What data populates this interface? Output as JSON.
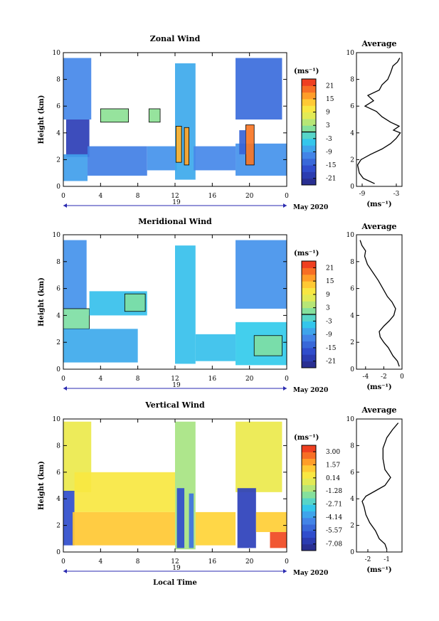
{
  "chart_data": [
    {
      "type": "heatmap",
      "title": "Zonal Wind",
      "ylabel": "Height (km)",
      "xlabel": "",
      "x_ticks": [
        "0",
        "4",
        "8",
        "12",
        "16",
        "20",
        "0"
      ],
      "y_ticks": [
        "0",
        "2",
        "4",
        "6",
        "8",
        "10"
      ],
      "xlim": [
        0,
        24
      ],
      "ylim": [
        0,
        10
      ],
      "date_marker": "19",
      "date_label": "May 2020",
      "colorbar": {
        "unit": "(ms⁻¹)",
        "ticks": [
          "-21",
          "-15",
          "-9",
          "-3",
          "3",
          "9",
          "15",
          "21"
        ],
        "range": [
          -24,
          24
        ],
        "zero_contour": 0
      },
      "regions": [
        {
          "x": [
            0,
            3
          ],
          "y": [
            5,
            9.6
          ],
          "value": -10
        },
        {
          "x": [
            0.3,
            2.8
          ],
          "y": [
            2.2,
            5
          ],
          "value": -19
        },
        {
          "x": [
            0,
            2.6
          ],
          "y": [
            0.4,
            2.4
          ],
          "value": -8
        },
        {
          "x": [
            2.6,
            9
          ],
          "y": [
            0.8,
            3
          ],
          "value": -11
        },
        {
          "x": [
            4,
            7
          ],
          "y": [
            4.8,
            5.8
          ],
          "value": 2
        },
        {
          "x": [
            9.2,
            10.4
          ],
          "y": [
            4.8,
            5.8
          ],
          "value": 2
        },
        {
          "x": [
            9,
            12.2
          ],
          "y": [
            1.2,
            3
          ],
          "value": -9
        },
        {
          "x": [
            12,
            14.2
          ],
          "y": [
            0.5,
            9.2
          ],
          "value": -7
        },
        {
          "x": [
            12.1,
            12.7
          ],
          "y": [
            1.8,
            4.5
          ],
          "value": 15
        },
        {
          "x": [
            13,
            13.5
          ],
          "y": [
            1.6,
            4.4
          ],
          "value": 16
        },
        {
          "x": [
            14,
            18.5
          ],
          "y": [
            1.2,
            3
          ],
          "value": -10
        },
        {
          "x": [
            18.5,
            23.5
          ],
          "y": [
            5,
            9.6
          ],
          "value": -13
        },
        {
          "x": [
            18.5,
            24
          ],
          "y": [
            0.8,
            3.2
          ],
          "value": -9
        },
        {
          "x": [
            19.6,
            20.5
          ],
          "y": [
            1.6,
            4.6
          ],
          "value": 19
        },
        {
          "x": [
            18.9,
            19.6
          ],
          "y": [
            2.4,
            4.2
          ],
          "value": -14
        }
      ],
      "average": {
        "title": "Average",
        "xlabel": "(ms⁻¹)",
        "x_ticks": [
          "-9",
          "-3"
        ],
        "xlim": [
          -10,
          -2
        ],
        "profile": [
          [
            -6.8,
            0.2
          ],
          [
            -8.8,
            0.6
          ],
          [
            -9.5,
            1.0
          ],
          [
            -9.8,
            1.6
          ],
          [
            -9.2,
            2.0
          ],
          [
            -7.5,
            2.4
          ],
          [
            -5.5,
            2.8
          ],
          [
            -4.0,
            3.2
          ],
          [
            -3.0,
            3.6
          ],
          [
            -2.3,
            4.0
          ],
          [
            -3.5,
            4.2
          ],
          [
            -2.5,
            4.5
          ],
          [
            -4.0,
            4.8
          ],
          [
            -5.5,
            5.2
          ],
          [
            -6.5,
            5.6
          ],
          [
            -8.5,
            6.0
          ],
          [
            -7.0,
            6.4
          ],
          [
            -8.0,
            6.8
          ],
          [
            -6.0,
            7.2
          ],
          [
            -5.5,
            7.6
          ],
          [
            -4.5,
            8.0
          ],
          [
            -4.0,
            8.5
          ],
          [
            -3.6,
            9.0
          ],
          [
            -2.8,
            9.3
          ],
          [
            -2.4,
            9.6
          ]
        ]
      }
    },
    {
      "type": "heatmap",
      "title": "Meridional Wind",
      "ylabel": "Height (km)",
      "xlabel": "",
      "x_ticks": [
        "0",
        "4",
        "8",
        "12",
        "16",
        "20",
        "0"
      ],
      "y_ticks": [
        "0",
        "2",
        "4",
        "6",
        "8",
        "10"
      ],
      "xlim": [
        0,
        24
      ],
      "ylim": [
        0,
        10
      ],
      "date_marker": "19",
      "date_label": "May 2020",
      "colorbar": {
        "unit": "(ms⁻¹)",
        "ticks": [
          "-21",
          "-15",
          "-9",
          "-3",
          "3",
          "9",
          "15",
          "21"
        ],
        "range": [
          -24,
          24
        ],
        "zero_contour": 0
      },
      "regions": [
        {
          "x": [
            0,
            2.5
          ],
          "y": [
            4.5,
            9.6
          ],
          "value": -9
        },
        {
          "x": [
            0,
            2.8
          ],
          "y": [
            3,
            4.5
          ],
          "value": 1
        },
        {
          "x": [
            2.8,
            9
          ],
          "y": [
            4,
            5.8
          ],
          "value": -5
        },
        {
          "x": [
            0,
            8
          ],
          "y": [
            0.5,
            3
          ],
          "value": -7
        },
        {
          "x": [
            6.6,
            8.8
          ],
          "y": [
            4.3,
            5.6
          ],
          "value": 1
        },
        {
          "x": [
            12,
            14.2
          ],
          "y": [
            0.4,
            9.2
          ],
          "value": -5
        },
        {
          "x": [
            14.2,
            18.5
          ],
          "y": [
            0.6,
            2.6
          ],
          "value": -5
        },
        {
          "x": [
            18.5,
            24
          ],
          "y": [
            4.5,
            9.6
          ],
          "value": -9
        },
        {
          "x": [
            18.5,
            24
          ],
          "y": [
            0.3,
            3.5
          ],
          "value": -4
        },
        {
          "x": [
            20.5,
            23.5
          ],
          "y": [
            1,
            2.5
          ],
          "value": 1
        }
      ],
      "average": {
        "title": "Average",
        "xlabel": "(ms⁻¹)",
        "x_ticks": [
          "-4",
          "-2",
          "0"
        ],
        "xlim": [
          -5,
          0
        ],
        "profile": [
          [
            -0.3,
            0.2
          ],
          [
            -0.5,
            0.6
          ],
          [
            -1.0,
            1.0
          ],
          [
            -1.5,
            1.6
          ],
          [
            -2.0,
            2.0
          ],
          [
            -2.4,
            2.4
          ],
          [
            -2.5,
            2.8
          ],
          [
            -2.0,
            3.2
          ],
          [
            -1.4,
            3.6
          ],
          [
            -0.9,
            4.0
          ],
          [
            -0.7,
            4.5
          ],
          [
            -1.1,
            5.0
          ],
          [
            -1.6,
            5.4
          ],
          [
            -2.1,
            6.0
          ],
          [
            -2.6,
            6.6
          ],
          [
            -3.2,
            7.2
          ],
          [
            -3.8,
            7.8
          ],
          [
            -4.1,
            8.4
          ],
          [
            -4.0,
            8.8
          ],
          [
            -4.4,
            9.2
          ],
          [
            -4.6,
            9.6
          ]
        ]
      }
    },
    {
      "type": "heatmap",
      "title": "Vertical Wind",
      "ylabel": "Height (km)",
      "xlabel": "Local Time",
      "x_ticks": [
        "0",
        "4",
        "8",
        "12",
        "16",
        "20",
        "0"
      ],
      "y_ticks": [
        "0",
        "2",
        "4",
        "6",
        "8",
        "10"
      ],
      "xlim": [
        0,
        24
      ],
      "ylim": [
        0,
        10
      ],
      "date_marker": "19",
      "date_label": "May 2020",
      "colorbar": {
        "unit": "(ms⁻¹)",
        "ticks": [
          "-7.08",
          "-5.57",
          "-4.14",
          "-2.71",
          "-1.28",
          "0.14",
          "1.57",
          "3.00"
        ],
        "range": [
          -7.8,
          3.7
        ],
        "zero_contour": null
      },
      "regions": [
        {
          "x": [
            0,
            3
          ],
          "y": [
            4.5,
            9.8
          ],
          "value": 0.1
        },
        {
          "x": [
            0,
            1.2
          ],
          "y": [
            0.5,
            4.6
          ],
          "value": -6
        },
        {
          "x": [
            1.2,
            12
          ],
          "y": [
            3,
            6
          ],
          "value": 0.5
        },
        {
          "x": [
            1,
            12
          ],
          "y": [
            0.5,
            3
          ],
          "value": 1.2
        },
        {
          "x": [
            12,
            14.2
          ],
          "y": [
            0.2,
            9.8
          ],
          "value": -1.2
        },
        {
          "x": [
            12.2,
            13
          ],
          "y": [
            0.3,
            4.8
          ],
          "value": -6
        },
        {
          "x": [
            13.5,
            14
          ],
          "y": [
            0.3,
            4.4
          ],
          "value": -5
        },
        {
          "x": [
            14.2,
            18.5
          ],
          "y": [
            0.5,
            3
          ],
          "value": 1.0
        },
        {
          "x": [
            18.5,
            23.5
          ],
          "y": [
            4.5,
            9.8
          ],
          "value": 0.1
        },
        {
          "x": [
            18.7,
            20.7
          ],
          "y": [
            0.3,
            4.8
          ],
          "value": -6.5
        },
        {
          "x": [
            20.7,
            24
          ],
          "y": [
            1.5,
            3
          ],
          "value": 1.1
        },
        {
          "x": [
            22.2,
            24
          ],
          "y": [
            0.3,
            1.5
          ],
          "value": 3.2
        }
      ],
      "average": {
        "title": "Average",
        "xlabel": "(ms⁻¹)",
        "x_ticks": [
          "-2",
          "-1"
        ],
        "xlim": [
          -2.6,
          -0.2
        ],
        "profile": [
          [
            -1.0,
            0.2
          ],
          [
            -1.1,
            0.6
          ],
          [
            -1.4,
            1.0
          ],
          [
            -1.6,
            1.6
          ],
          [
            -1.9,
            2.2
          ],
          [
            -2.1,
            2.8
          ],
          [
            -2.2,
            3.4
          ],
          [
            -2.3,
            3.8
          ],
          [
            -2.1,
            4.2
          ],
          [
            -1.6,
            4.6
          ],
          [
            -1.1,
            5.0
          ],
          [
            -0.8,
            5.6
          ],
          [
            -1.1,
            6.2
          ],
          [
            -1.2,
            7.0
          ],
          [
            -1.2,
            7.8
          ],
          [
            -1.0,
            8.6
          ],
          [
            -0.7,
            9.2
          ],
          [
            -0.4,
            9.7
          ]
        ]
      }
    }
  ]
}
